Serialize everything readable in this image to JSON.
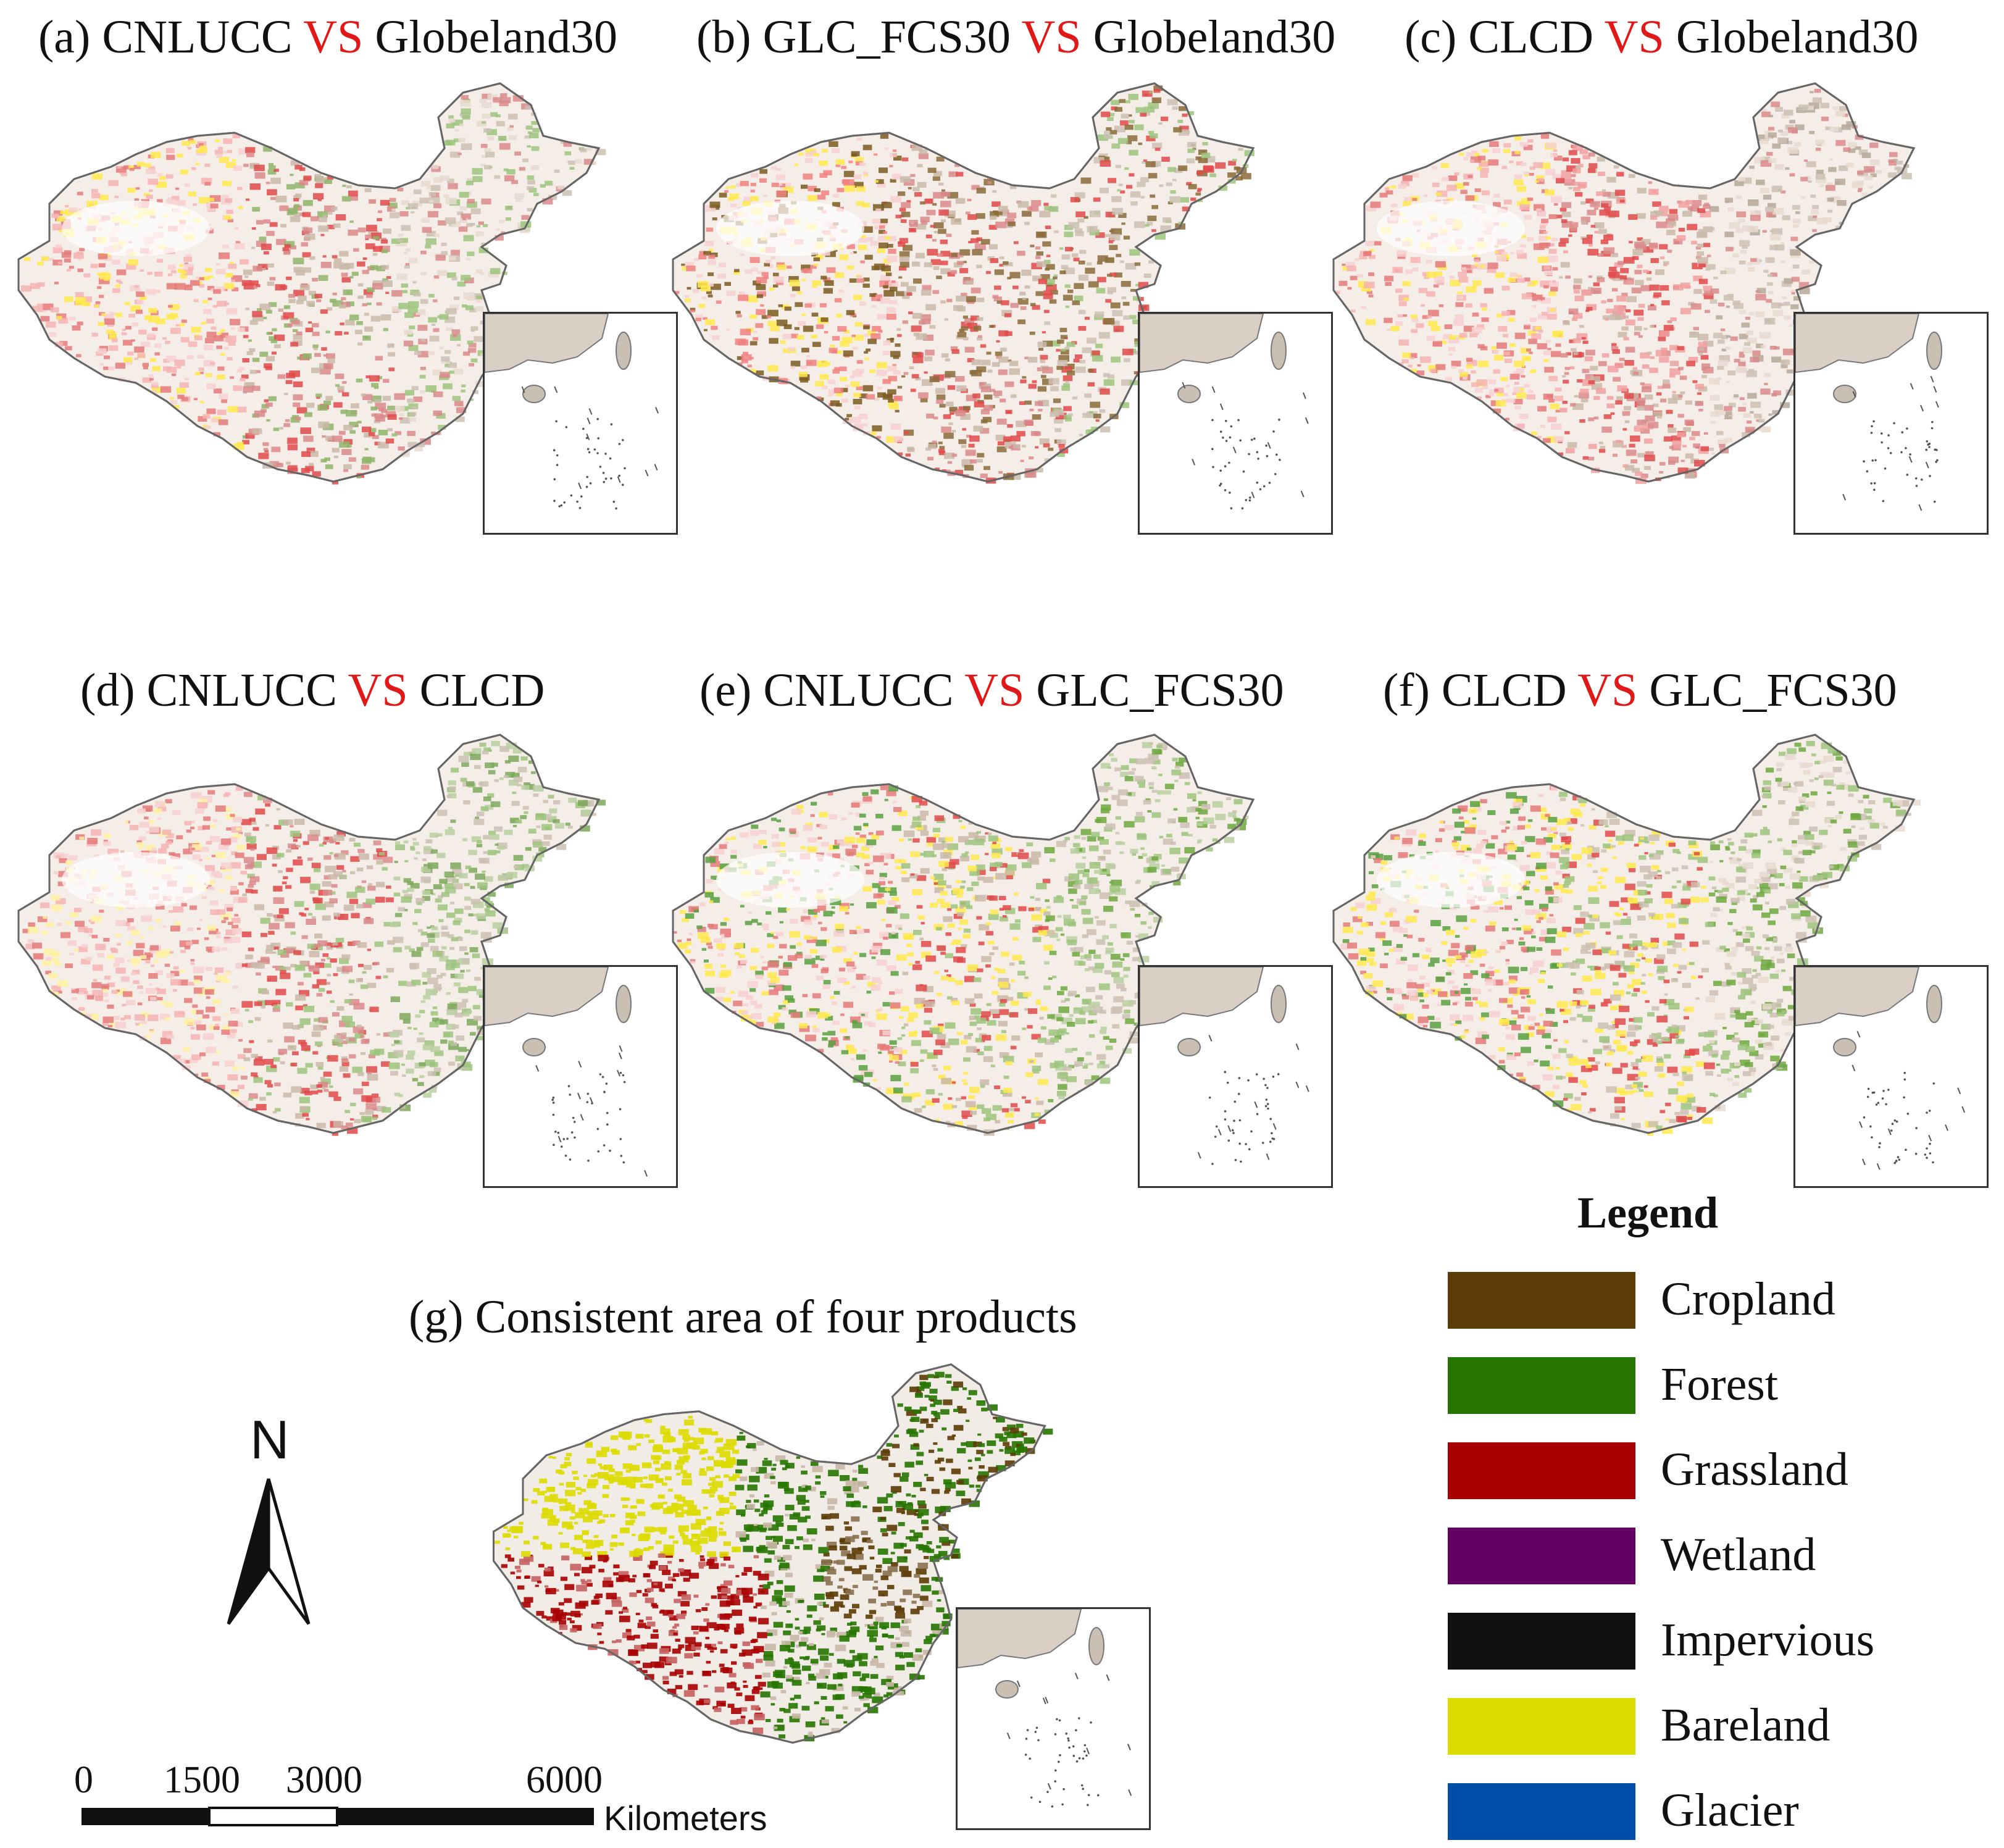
{
  "panels": [
    {
      "prefix": "(a) CNLUCC ",
      "vs": "VS",
      "suffix": " Globeland30"
    },
    {
      "prefix": "(b) GLC_FCS30 ",
      "vs": "VS",
      "suffix": " Globeland30"
    },
    {
      "prefix": "(c) CLCD ",
      "vs": "VS",
      "suffix": " Globeland30"
    },
    {
      "prefix": "(d) CNLUCC ",
      "vs": "VS",
      "suffix": " CLCD"
    },
    {
      "prefix": "(e) CNLUCC  ",
      "vs": "VS",
      "suffix": " GLC_FCS30"
    },
    {
      "prefix": "(f) CLCD ",
      "vs": "VS",
      "suffix": " GLC_FCS30"
    }
  ],
  "consistent": {
    "title": "(g) Consistent area of four products"
  },
  "legend": {
    "title": "Legend",
    "items": [
      {
        "label": "Cropland",
        "color": "#5c3c06"
      },
      {
        "label": "Forest",
        "color": "#267500"
      },
      {
        "label": "Grassland",
        "color": "#a80000"
      },
      {
        "label": "Wetland",
        "color": "#630064"
      },
      {
        "label": "Impervious",
        "color": "#111111"
      },
      {
        "label": "Bareland",
        "color": "#dcdc00"
      },
      {
        "label": "Glacier",
        "color": "#004ea8"
      }
    ]
  },
  "north_arrow": {
    "letter": "N"
  },
  "scale_bar": {
    "ticks": [
      "0",
      "1500",
      "3000",
      "6000"
    ],
    "unit": "Kilometers"
  }
}
